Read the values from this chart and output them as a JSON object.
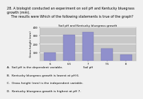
{
  "title": "Soil pH and Kentucky bluegrass growth",
  "xlabel": "Soil pH",
  "ylabel": "Grass height (mm)",
  "categories": [
    "6",
    "6.5",
    "7",
    "7.5",
    "8"
  ],
  "values": [
    100,
    310,
    340,
    150,
    75
  ],
  "bar_color": "#9090cc",
  "bar_edge_color": "#7070aa",
  "ylim": [
    0,
    400
  ],
  "yticks": [
    100,
    200,
    300,
    400
  ],
  "outer_bg": "#f0f0f0",
  "chart_bg": "#c8c8c8",
  "title_fontsize": 3.2,
  "axis_label_fontsize": 3.0,
  "tick_fontsize": 2.8,
  "bar_width": 0.6,
  "question_text": "28. A biologist conducted an experiment on soil pH and Kentucky bluegrass growth (mm).\n    The results were Which of the following statements is true of the graph?",
  "answers": [
    "A.  Soil pH is the dependent variable.",
    "B.  Kentucky bluegrass growth is lowest at pH 6.",
    "C.  Grass height (mm) is the independent variable.",
    "D.  Kentucky bluegrass growth is highest at pH 7."
  ],
  "question_fontsize": 3.5,
  "answer_fontsize": 3.2
}
